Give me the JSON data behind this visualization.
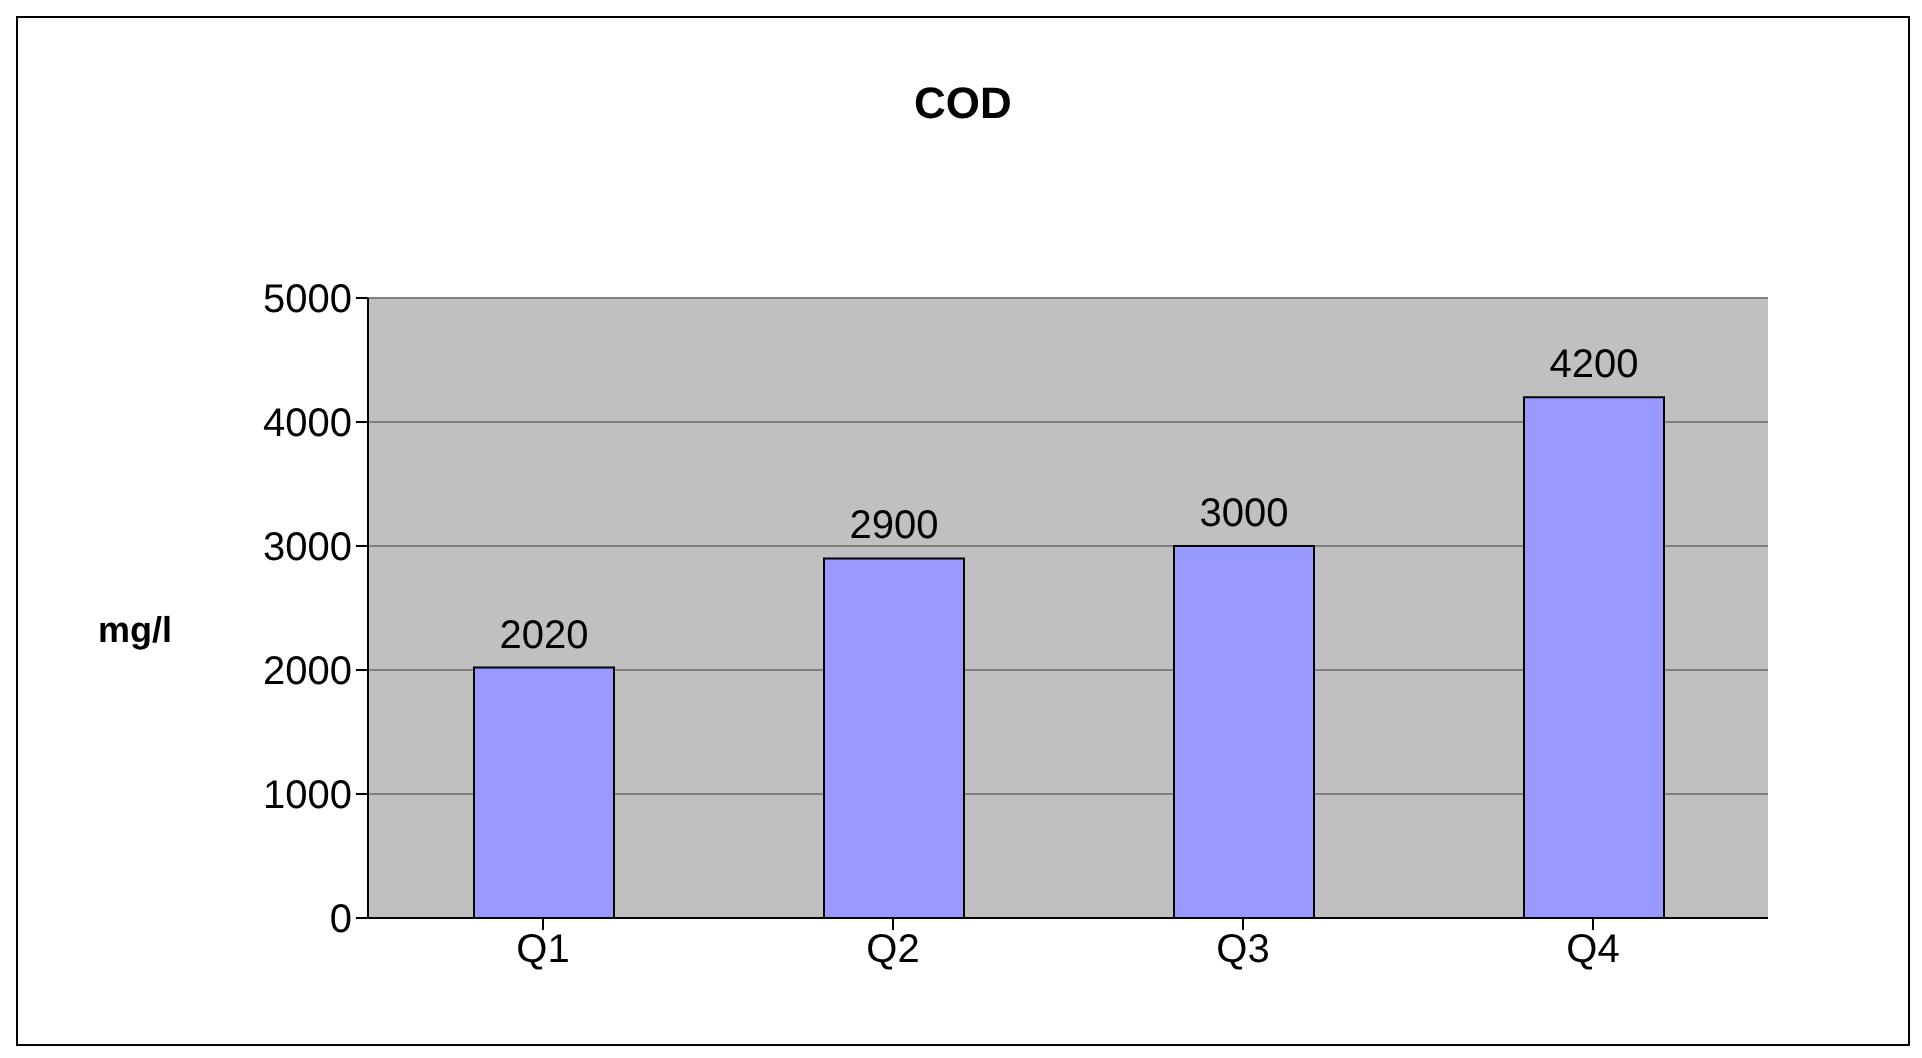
{
  "chart_data": {
    "type": "bar",
    "title": "COD",
    "ylabel": "mg/l",
    "categories": [
      "Q1",
      "Q2",
      "Q3",
      "Q4"
    ],
    "values": [
      2020,
      2900,
      3000,
      4200
    ],
    "color": "#9999ff",
    "ylim": [
      0,
      5000
    ],
    "yticks": [
      0,
      1000,
      2000,
      3000,
      4000,
      5000
    ],
    "grid": "y",
    "data_labels": true
  }
}
